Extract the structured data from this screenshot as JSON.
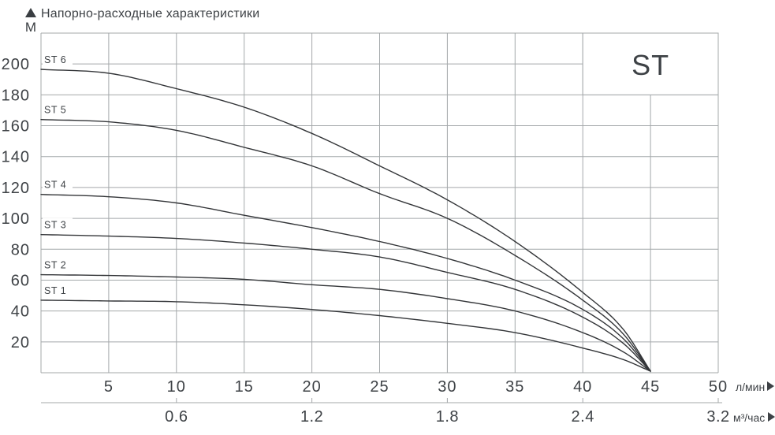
{
  "header": {
    "title": "Напорно-расходные характеристики",
    "y_axis_unit": "М"
  },
  "series_box": {
    "label": "ST"
  },
  "colors": {
    "text": "#3e4246",
    "grid": "#a4a8aa",
    "curve": "#333538",
    "box_bg": "#ffffff"
  },
  "chart_data": {
    "type": "line",
    "title": "Напорно-расходные характеристики",
    "ylabel": "М",
    "xlabel_primary": "л/мин",
    "xlabel_secondary": "м³/час",
    "xlim": [
      0,
      50
    ],
    "ylim": [
      0,
      220
    ],
    "grid": true,
    "legend_position": "top-right-box",
    "x_ticks_primary": [
      "5",
      "10",
      "15",
      "20",
      "25",
      "30",
      "35",
      "40",
      "45",
      "50"
    ],
    "x_ticks_primary_q": [
      5,
      10,
      15,
      20,
      25,
      30,
      35,
      40,
      45,
      50
    ],
    "x_ticks_secondary": [
      {
        "q": 10,
        "label": "0.6"
      },
      {
        "q": 20,
        "label": "1.2"
      },
      {
        "q": 30,
        "label": "1.8"
      },
      {
        "q": 40,
        "label": "2.4"
      },
      {
        "q": 50,
        "label": "3.2"
      }
    ],
    "y_ticks": [
      20,
      40,
      60,
      80,
      100,
      120,
      140,
      160,
      180,
      200
    ],
    "series": [
      {
        "name": "ST 6",
        "points": [
          [
            0,
            196.5
          ],
          [
            5,
            194
          ],
          [
            10,
            184
          ],
          [
            15,
            172
          ],
          [
            20,
            155
          ],
          [
            25,
            134
          ],
          [
            30,
            112
          ],
          [
            35,
            85
          ],
          [
            40,
            52
          ],
          [
            43,
            28
          ],
          [
            45,
            1
          ]
        ]
      },
      {
        "name": "ST 5",
        "points": [
          [
            0,
            164
          ],
          [
            5,
            162.5
          ],
          [
            10,
            157
          ],
          [
            15,
            146
          ],
          [
            20,
            134
          ],
          [
            25,
            116
          ],
          [
            30,
            100
          ],
          [
            35,
            76
          ],
          [
            40,
            47
          ],
          [
            43,
            25
          ],
          [
            45,
            1
          ]
        ]
      },
      {
        "name": "ST 4",
        "points": [
          [
            0,
            115.5
          ],
          [
            5,
            114
          ],
          [
            10,
            110
          ],
          [
            15,
            102
          ],
          [
            20,
            94
          ],
          [
            25,
            85
          ],
          [
            30,
            74
          ],
          [
            35,
            60
          ],
          [
            40,
            41
          ],
          [
            43,
            22
          ],
          [
            45,
            1
          ]
        ]
      },
      {
        "name": "ST 3",
        "points": [
          [
            0,
            89.5
          ],
          [
            5,
            88.5
          ],
          [
            10,
            87
          ],
          [
            15,
            84
          ],
          [
            20,
            80
          ],
          [
            25,
            75
          ],
          [
            30,
            65
          ],
          [
            35,
            54
          ],
          [
            40,
            36
          ],
          [
            43,
            19
          ],
          [
            45,
            1
          ]
        ]
      },
      {
        "name": "ST 2",
        "points": [
          [
            0,
            63.5
          ],
          [
            5,
            63
          ],
          [
            10,
            62
          ],
          [
            15,
            60.5
          ],
          [
            20,
            57
          ],
          [
            25,
            54
          ],
          [
            30,
            48
          ],
          [
            35,
            40
          ],
          [
            40,
            26
          ],
          [
            43,
            13.5
          ],
          [
            45,
            1
          ]
        ]
      },
      {
        "name": "ST 1",
        "points": [
          [
            0,
            47
          ],
          [
            5,
            46.5
          ],
          [
            10,
            46
          ],
          [
            15,
            44
          ],
          [
            20,
            41
          ],
          [
            25,
            37
          ],
          [
            30,
            32
          ],
          [
            35,
            26
          ],
          [
            40,
            16
          ],
          [
            43,
            8.5
          ],
          [
            45,
            1
          ]
        ]
      }
    ]
  }
}
